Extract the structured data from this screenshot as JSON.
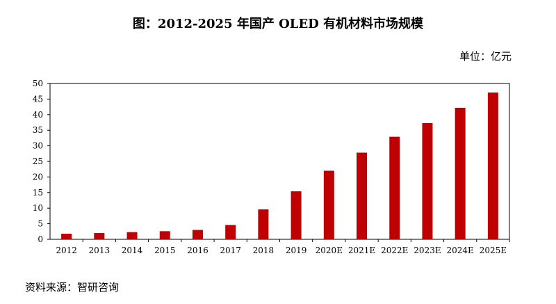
{
  "title": "图：2012-2025 年国产 OLED 有机材料市场规模",
  "unit_label": "单位：亿元",
  "source_label": "资料来源：智研咨询",
  "colors": {
    "bar": "#C00000",
    "axis": "#000000",
    "frame": "#000000"
  },
  "chart_data": {
    "type": "bar",
    "title": "图：2012-2025 年国产 OLED 有机材料市场规模",
    "xlabel": "",
    "ylabel": "",
    "ylim": [
      0,
      50
    ],
    "yticks": [
      0,
      5,
      10,
      15,
      20,
      25,
      30,
      35,
      40,
      45,
      50
    ],
    "grid": false,
    "legend": "none",
    "categories": [
      "2012",
      "2013",
      "2014",
      "2015",
      "2016",
      "2017",
      "2018",
      "2019",
      "2020E",
      "2021E",
      "2022E",
      "2023E",
      "2024E",
      "2025E"
    ],
    "values": [
      1.8,
      2.0,
      2.3,
      2.6,
      3.0,
      4.6,
      9.6,
      15.4,
      22.0,
      27.8,
      32.9,
      37.3,
      42.2,
      47.1
    ]
  }
}
